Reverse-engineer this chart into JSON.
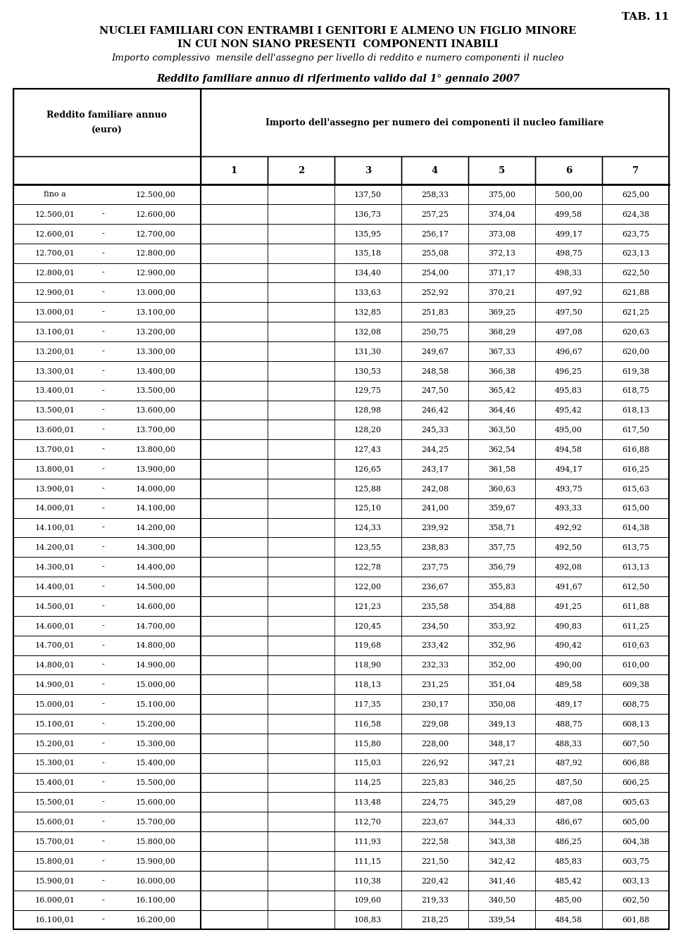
{
  "tab_label": "TAB. 11",
  "title1": "NUCLEI FAMILIARI CON ENTRAMBI I GENITORI E ALMENO UN FIGLIO MINORE",
  "title2": "IN CUI NON SIANO PRESENTI  COMPONENTI INABILI",
  "subtitle": "Importo complessivo  mensile dell'assegno per livello di reddito e numero componenti il nucleo",
  "italic_title": "Reddito familiare annuo di riferimento valido dal 1° gennaio 2007",
  "col_header_left": [
    "Reddito familiare annuo",
    "(euro)"
  ],
  "col_header_right": "Importo dell'assegno per numero dei componenti il nucleo familiare",
  "col_numbers": [
    "1",
    "2",
    "3",
    "4",
    "5",
    "6",
    "7"
  ],
  "rows": [
    [
      "fino a",
      "12.500,00",
      "",
      "",
      "137,50",
      "258,33",
      "375,00",
      "500,00",
      "625,00"
    ],
    [
      "12.500,01",
      "12.600,00",
      "",
      "",
      "136,73",
      "257,25",
      "374,04",
      "499,58",
      "624,38"
    ],
    [
      "12.600,01",
      "12.700,00",
      "",
      "",
      "135,95",
      "256,17",
      "373,08",
      "499,17",
      "623,75"
    ],
    [
      "12.700,01",
      "12.800,00",
      "",
      "",
      "135,18",
      "255,08",
      "372,13",
      "498,75",
      "623,13"
    ],
    [
      "12.800,01",
      "12.900,00",
      "",
      "",
      "134,40",
      "254,00",
      "371,17",
      "498,33",
      "622,50"
    ],
    [
      "12.900,01",
      "13.000,00",
      "",
      "",
      "133,63",
      "252,92",
      "370,21",
      "497,92",
      "621,88"
    ],
    [
      "13.000,01",
      "13.100,00",
      "",
      "",
      "132,85",
      "251,83",
      "369,25",
      "497,50",
      "621,25"
    ],
    [
      "13.100,01",
      "13.200,00",
      "",
      "",
      "132,08",
      "250,75",
      "368,29",
      "497,08",
      "620,63"
    ],
    [
      "13.200,01",
      "13.300,00",
      "",
      "",
      "131,30",
      "249,67",
      "367,33",
      "496,67",
      "620,00"
    ],
    [
      "13.300,01",
      "13.400,00",
      "",
      "",
      "130,53",
      "248,58",
      "366,38",
      "496,25",
      "619,38"
    ],
    [
      "13.400,01",
      "13.500,00",
      "",
      "",
      "129,75",
      "247,50",
      "365,42",
      "495,83",
      "618,75"
    ],
    [
      "13.500,01",
      "13.600,00",
      "",
      "",
      "128,98",
      "246,42",
      "364,46",
      "495,42",
      "618,13"
    ],
    [
      "13.600,01",
      "13.700,00",
      "",
      "",
      "128,20",
      "245,33",
      "363,50",
      "495,00",
      "617,50"
    ],
    [
      "13.700,01",
      "13.800,00",
      "",
      "",
      "127,43",
      "244,25",
      "362,54",
      "494,58",
      "616,88"
    ],
    [
      "13.800,01",
      "13.900,00",
      "",
      "",
      "126,65",
      "243,17",
      "361,58",
      "494,17",
      "616,25"
    ],
    [
      "13.900,01",
      "14.000,00",
      "",
      "",
      "125,88",
      "242,08",
      "360,63",
      "493,75",
      "615,63"
    ],
    [
      "14.000,01",
      "14.100,00",
      "",
      "",
      "125,10",
      "241,00",
      "359,67",
      "493,33",
      "615,00"
    ],
    [
      "14.100,01",
      "14.200,00",
      "",
      "",
      "124,33",
      "239,92",
      "358,71",
      "492,92",
      "614,38"
    ],
    [
      "14.200,01",
      "14.300,00",
      "",
      "",
      "123,55",
      "238,83",
      "357,75",
      "492,50",
      "613,75"
    ],
    [
      "14.300,01",
      "14.400,00",
      "",
      "",
      "122,78",
      "237,75",
      "356,79",
      "492,08",
      "613,13"
    ],
    [
      "14.400,01",
      "14.500,00",
      "",
      "",
      "122,00",
      "236,67",
      "355,83",
      "491,67",
      "612,50"
    ],
    [
      "14.500,01",
      "14.600,00",
      "",
      "",
      "121,23",
      "235,58",
      "354,88",
      "491,25",
      "611,88"
    ],
    [
      "14.600,01",
      "14.700,00",
      "",
      "",
      "120,45",
      "234,50",
      "353,92",
      "490,83",
      "611,25"
    ],
    [
      "14.700,01",
      "14.800,00",
      "",
      "",
      "119,68",
      "233,42",
      "352,96",
      "490,42",
      "610,63"
    ],
    [
      "14.800,01",
      "14.900,00",
      "",
      "",
      "118,90",
      "232,33",
      "352,00",
      "490,00",
      "610,00"
    ],
    [
      "14.900,01",
      "15.000,00",
      "",
      "",
      "118,13",
      "231,25",
      "351,04",
      "489,58",
      "609,38"
    ],
    [
      "15.000,01",
      "15.100,00",
      "",
      "",
      "117,35",
      "230,17",
      "350,08",
      "489,17",
      "608,75"
    ],
    [
      "15.100,01",
      "15.200,00",
      "",
      "",
      "116,58",
      "229,08",
      "349,13",
      "488,75",
      "608,13"
    ],
    [
      "15.200,01",
      "15.300,00",
      "",
      "",
      "115,80",
      "228,00",
      "348,17",
      "488,33",
      "607,50"
    ],
    [
      "15.300,01",
      "15.400,00",
      "",
      "",
      "115,03",
      "226,92",
      "347,21",
      "487,92",
      "606,88"
    ],
    [
      "15.400,01",
      "15.500,00",
      "",
      "",
      "114,25",
      "225,83",
      "346,25",
      "487,50",
      "606,25"
    ],
    [
      "15.500,01",
      "15.600,00",
      "",
      "",
      "113,48",
      "224,75",
      "345,29",
      "487,08",
      "605,63"
    ],
    [
      "15.600,01",
      "15.700,00",
      "",
      "",
      "112,70",
      "223,67",
      "344,33",
      "486,67",
      "605,00"
    ],
    [
      "15.700,01",
      "15.800,00",
      "",
      "",
      "111,93",
      "222,58",
      "343,38",
      "486,25",
      "604,38"
    ],
    [
      "15.800,01",
      "15.900,00",
      "",
      "",
      "111,15",
      "221,50",
      "342,42",
      "485,83",
      "603,75"
    ],
    [
      "15.900,01",
      "16.000,00",
      "",
      "",
      "110,38",
      "220,42",
      "341,46",
      "485,42",
      "603,13"
    ],
    [
      "16.000,01",
      "16.100,00",
      "",
      "",
      "109,60",
      "219,33",
      "340,50",
      "485,00",
      "602,50"
    ],
    [
      "16.100,01",
      "16.200,00",
      "",
      "",
      "108,83",
      "218,25",
      "339,54",
      "484,58",
      "601,88"
    ]
  ],
  "bg_color": "#ffffff",
  "text_color": "#000000",
  "header_bg": "#ffffff"
}
